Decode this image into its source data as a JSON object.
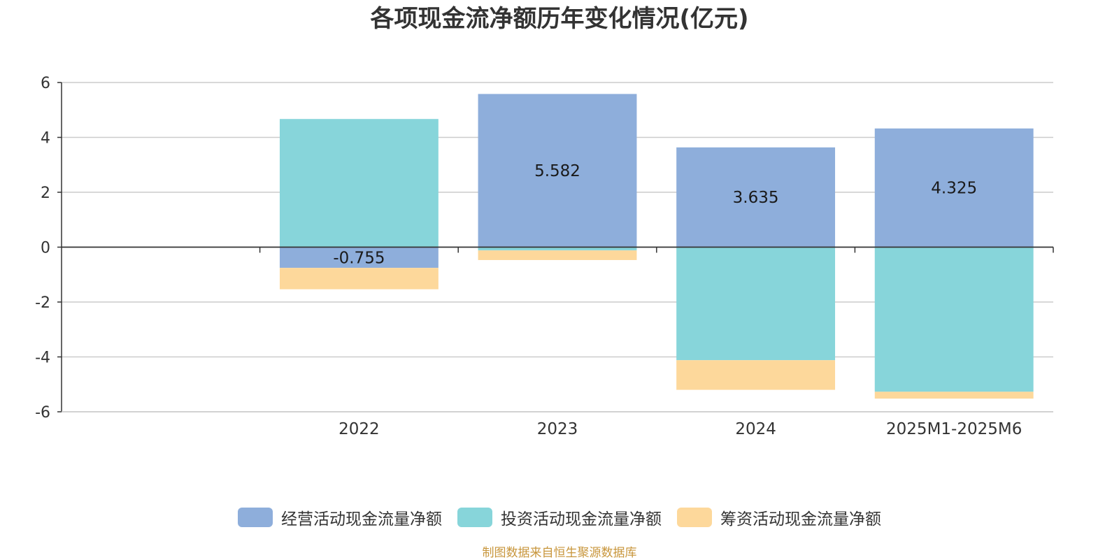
{
  "chart_data": {
    "type": "bar",
    "stacked": true,
    "title": "各项现金流净额历年变化情况(亿元)",
    "categories": [
      "",
      "2022",
      "2023",
      "2024",
      "2025M1-2025M6"
    ],
    "ylim": [
      -6,
      6
    ],
    "yticks": [
      6,
      4,
      2,
      0,
      -2,
      -4,
      -6
    ],
    "grid": true,
    "legend_position": "bottom",
    "series": [
      {
        "name": "经营活动现金流量净额",
        "color": "#8eaedb",
        "values": [
          null,
          -0.755,
          5.582,
          3.635,
          4.325
        ],
        "labels": [
          "",
          "-0.755",
          "5.582",
          "3.635",
          "4.325"
        ]
      },
      {
        "name": "投资活动现金流量净额",
        "color": "#87d5da",
        "values": [
          null,
          4.67,
          -0.12,
          -4.12,
          -5.27
        ],
        "labels": [
          "",
          "",
          "",
          "",
          ""
        ]
      },
      {
        "name": "筹资活动现金流量净额",
        "color": "#fdd89b",
        "values": [
          null,
          -0.78,
          -0.35,
          -1.08,
          -0.25
        ],
        "labels": [
          "",
          "",
          "",
          "",
          ""
        ]
      }
    ]
  },
  "source_note": "制图数据来自恒生聚源数据库"
}
